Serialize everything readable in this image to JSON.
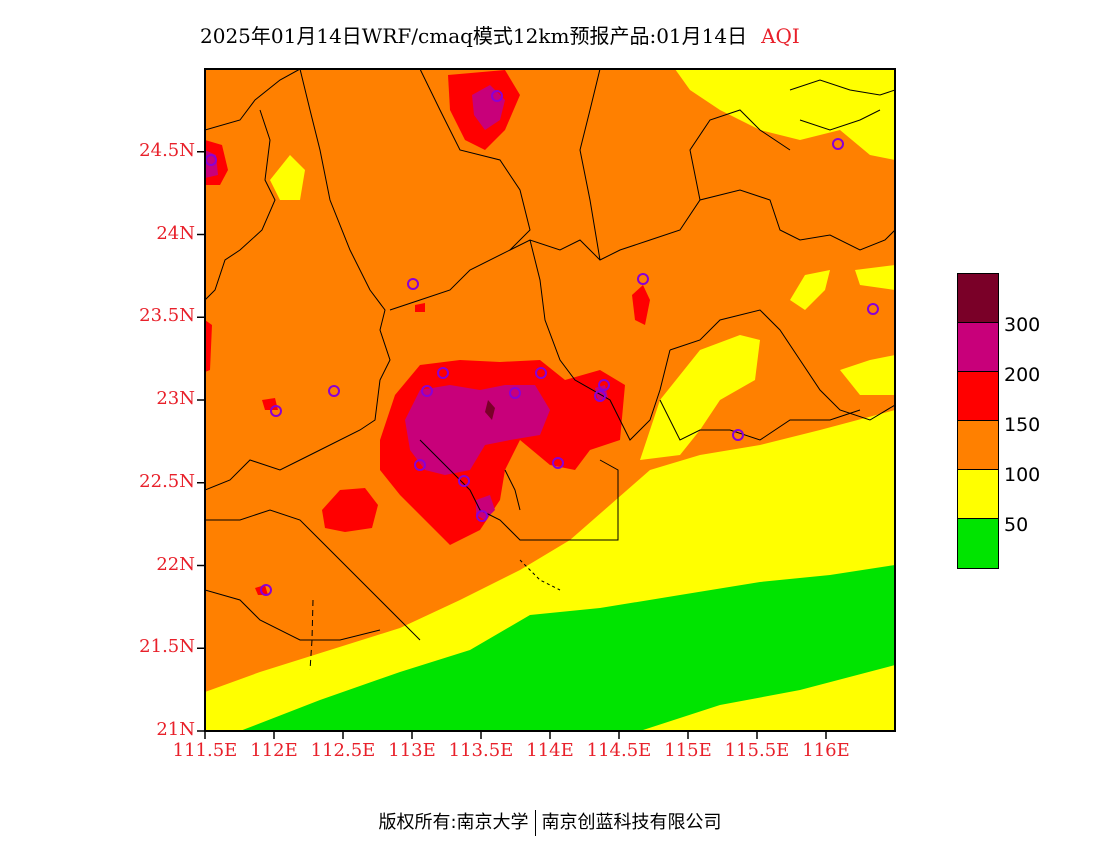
{
  "title": {
    "main": "2025年01月14日WRF/cmaq模式12km预报产品:01月14日",
    "variable": "AQI"
  },
  "map": {
    "lon_range": [
      111.5,
      116.5
    ],
    "lat_range": [
      21,
      25
    ],
    "y_ticks": [
      "24.5N",
      "24N",
      "23.5N",
      "23N",
      "22.5N",
      "22N",
      "21.5N",
      "21N"
    ],
    "x_ticks": [
      "111.5E",
      "112E",
      "112.5E",
      "113E",
      "113.5E",
      "114E",
      "114.5E",
      "115E",
      "115.5E",
      "116E"
    ],
    "city_markers": 20
  },
  "legend": {
    "colors": [
      "#7a0028",
      "#c8007a",
      "#ff0000",
      "#ff8000",
      "#ffff00",
      "#00e400"
    ],
    "labels": [
      "300",
      "200",
      "150",
      "100",
      "50"
    ]
  },
  "footer": {
    "left": "版权所有:南京大学",
    "right": "南京创蓝科技有限公司"
  }
}
